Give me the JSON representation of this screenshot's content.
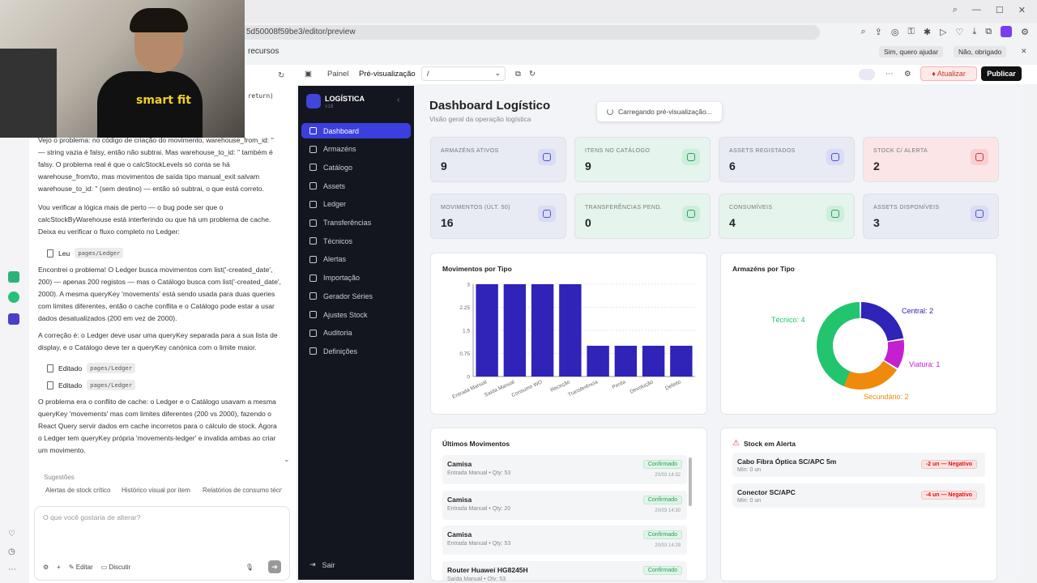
{
  "browser": {
    "url": "5d50008f59be3/editor/preview",
    "tab_text": "recursos",
    "prompt_yes": "Sim, quero ajudar",
    "prompt_no": "Não, obrigado"
  },
  "webcam": {
    "logo_text": "smart fit"
  },
  "chat": {
    "code_fragment": "return)",
    "paragraphs": [
      "Vejo o problema: no código de criação do movimento, warehouse_from_id: '' — string vazia é falsy, então não subtrai. Mas warehouse_to_id: '' também é falsy. O problema real é que o calcStockLevels só conta se há warehouse_from/to, mas movimentos de saída tipo manual_exit salvam warehouse_to_id: '' (sem destino) — então só subtrai, o que está correto.",
      "Vou verificar a lógica mais de perto — o bug pode ser que o calcStockByWarehouse está interferindo ou que há um problema de cache. Deixa eu verificar o fluxo completo no Ledger:",
      "Encontrei o problema! O Ledger busca movimentos com list('-created_date', 200) — apenas 200 registos — mas o Catálogo busca com list('-created_date', 2000). A mesma queryKey 'movements' está sendo usada para duas queries com limites diferentes, então o cache conflita e o Catálogo pode estar a usar dados desatualizados (200 em vez de 2000).",
      "A correção é: o Ledger deve usar uma queryKey separada para a sua lista de display, e o Catálogo deve ter a queryKey canónica com o limite maior.",
      "O problema era o conflito de cache: o Ledger e o Catálogo usavam a mesma queryKey 'movements' mas com limites diferentes (200 vs 2000), fazendo o React Query servir dados em cache incorretos para o cálculo de stock. Agora o Ledger tem queryKey própria 'movements-ledger' e invalida ambas ao criar um movimento."
    ],
    "file_actions": [
      {
        "action": "Leu",
        "file": "pages/Ledger"
      },
      {
        "action": "Editado",
        "file": "pages/Ledger"
      },
      {
        "action": "Editado",
        "file": "pages/Ledger"
      }
    ],
    "suggestions_title": "Sugestões",
    "suggestions": [
      "Alertas de stock crítico",
      "Histórico visual por item",
      "Relatórios de consumo técnic"
    ],
    "input_placeholder": "O que você gostaria de alterar?",
    "edit_label": "Editar",
    "discuss_label": "Discutir"
  },
  "appbar": {
    "panel_tab": "Painel",
    "preview_tab": "Pré-visualização",
    "path": "/",
    "update_label": "Atualizar",
    "publish_label": "Publicar"
  },
  "sidebar": {
    "brand": "LOGÍSTICA",
    "version": "v18",
    "items": [
      {
        "label": "Dashboard",
        "active": true
      },
      {
        "label": "Armazéns"
      },
      {
        "label": "Catálogo"
      },
      {
        "label": "Assets"
      },
      {
        "label": "Ledger"
      },
      {
        "label": "Transferências"
      },
      {
        "label": "Técnicos"
      },
      {
        "label": "Alertas"
      },
      {
        "label": "Importação"
      },
      {
        "label": "Gerador Séries"
      },
      {
        "label": "Ajustes Stock"
      },
      {
        "label": "Auditoria"
      },
      {
        "label": "Definições"
      }
    ],
    "logout": "Sair"
  },
  "dashboard": {
    "title": "Dashboard Logístico",
    "subtitle": "Visão geral da operação logística",
    "toast": "Carregando pré-visualização...",
    "cards": [
      {
        "label": "Armazéns Ativos",
        "value": "9",
        "bg": "#e8eaf4",
        "icon_bg": "#d9dcf3",
        "icon_color": "#4a52d6",
        "icon": "warehouse-icon"
      },
      {
        "label": "Itens no Catálogo",
        "value": "9",
        "bg": "#e5f4ec",
        "icon_bg": "#cdeedc",
        "icon_color": "#22a35a",
        "icon": "package-icon"
      },
      {
        "label": "Assets Registados",
        "value": "6",
        "bg": "#e8eaf4",
        "icon_bg": "#d9dcf3",
        "icon_color": "#4a52d6",
        "icon": "chip-icon"
      },
      {
        "label": "Stock c/ Alerta",
        "value": "2",
        "bg": "#fbe5e6",
        "icon_bg": "#f7d0d2",
        "icon_color": "#d73a3a",
        "icon": "warning-icon"
      },
      {
        "label": "Movimentos (últ. 50)",
        "value": "16",
        "bg": "#e8eaf4",
        "icon_bg": "#d9dcf3",
        "icon_color": "#4a52d6",
        "icon": "book-icon"
      },
      {
        "label": "Transferências Pend.",
        "value": "0",
        "bg": "#e5f4ec",
        "icon_bg": "#cdeedc",
        "icon_color": "#22a35a",
        "icon": "transfer-icon"
      },
      {
        "label": "Consumíveis",
        "value": "4",
        "bg": "#e5f4ec",
        "icon_bg": "#cdeedc",
        "icon_color": "#22a35a",
        "icon": "trend-icon"
      },
      {
        "label": "Assets Disponíveis",
        "value": "3",
        "bg": "#e8eaf4",
        "icon_bg": "#d9dcf3",
        "icon_color": "#4a52d6",
        "icon": "activity-icon"
      }
    ],
    "bar_title": "Movimentos por Tipo",
    "donut_title": "Armazéns por Tipo",
    "movements_title": "Últimos Movimentos",
    "movements": [
      {
        "name": "Camisa",
        "detail": "Entrada Manual • Qty: 53",
        "status": "Confirmado",
        "time": "20/03 14:32"
      },
      {
        "name": "Camisa",
        "detail": "Entrada Manual • Qty: 20",
        "status": "Confirmado",
        "time": "20/03 14:30"
      },
      {
        "name": "Camisa",
        "detail": "Entrada Manual • Qty: 53",
        "status": "Confirmado",
        "time": "20/03 14:29"
      },
      {
        "name": "Router Huawei HG8245H",
        "detail": "Saída Manual • Qty: 53",
        "status": "Confirmado",
        "time": ""
      }
    ],
    "alerts_title": "Stock em Alerta",
    "alerts": [
      {
        "name": "Cabo Fibra Óptica SC/APC 5m",
        "detail": "Mín: 0 un",
        "badge": "-2 un — Negativo"
      },
      {
        "name": "Conector SC/APC",
        "detail": "Mín: 0 un",
        "badge": "-4 un — Negativo"
      }
    ]
  },
  "chart_data": [
    {
      "type": "bar",
      "title": "Movimentos por Tipo",
      "categories": [
        "Entrada Manual",
        "Saída Manual",
        "Consumo WO",
        "Receção",
        "Transferência",
        "Perda",
        "Devolução",
        "Defeito"
      ],
      "values": [
        3,
        3,
        3,
        3,
        1,
        1,
        1,
        1
      ],
      "ylim": [
        0,
        3
      ],
      "yticks": [
        "0",
        "0.75",
        "1.5",
        "2.25",
        "3"
      ],
      "color": "#2f23b8"
    },
    {
      "type": "pie",
      "title": "Armazéns por Tipo",
      "slices": [
        {
          "label": "Técnico",
          "value": 4,
          "color": "#22c46e"
        },
        {
          "label": "Central",
          "value": 2,
          "color": "#2f23b8"
        },
        {
          "label": "Viatura",
          "value": 1,
          "color": "#c41fd1"
        },
        {
          "label": "Secundário",
          "value": 2,
          "color": "#f08a0c"
        }
      ]
    }
  ]
}
